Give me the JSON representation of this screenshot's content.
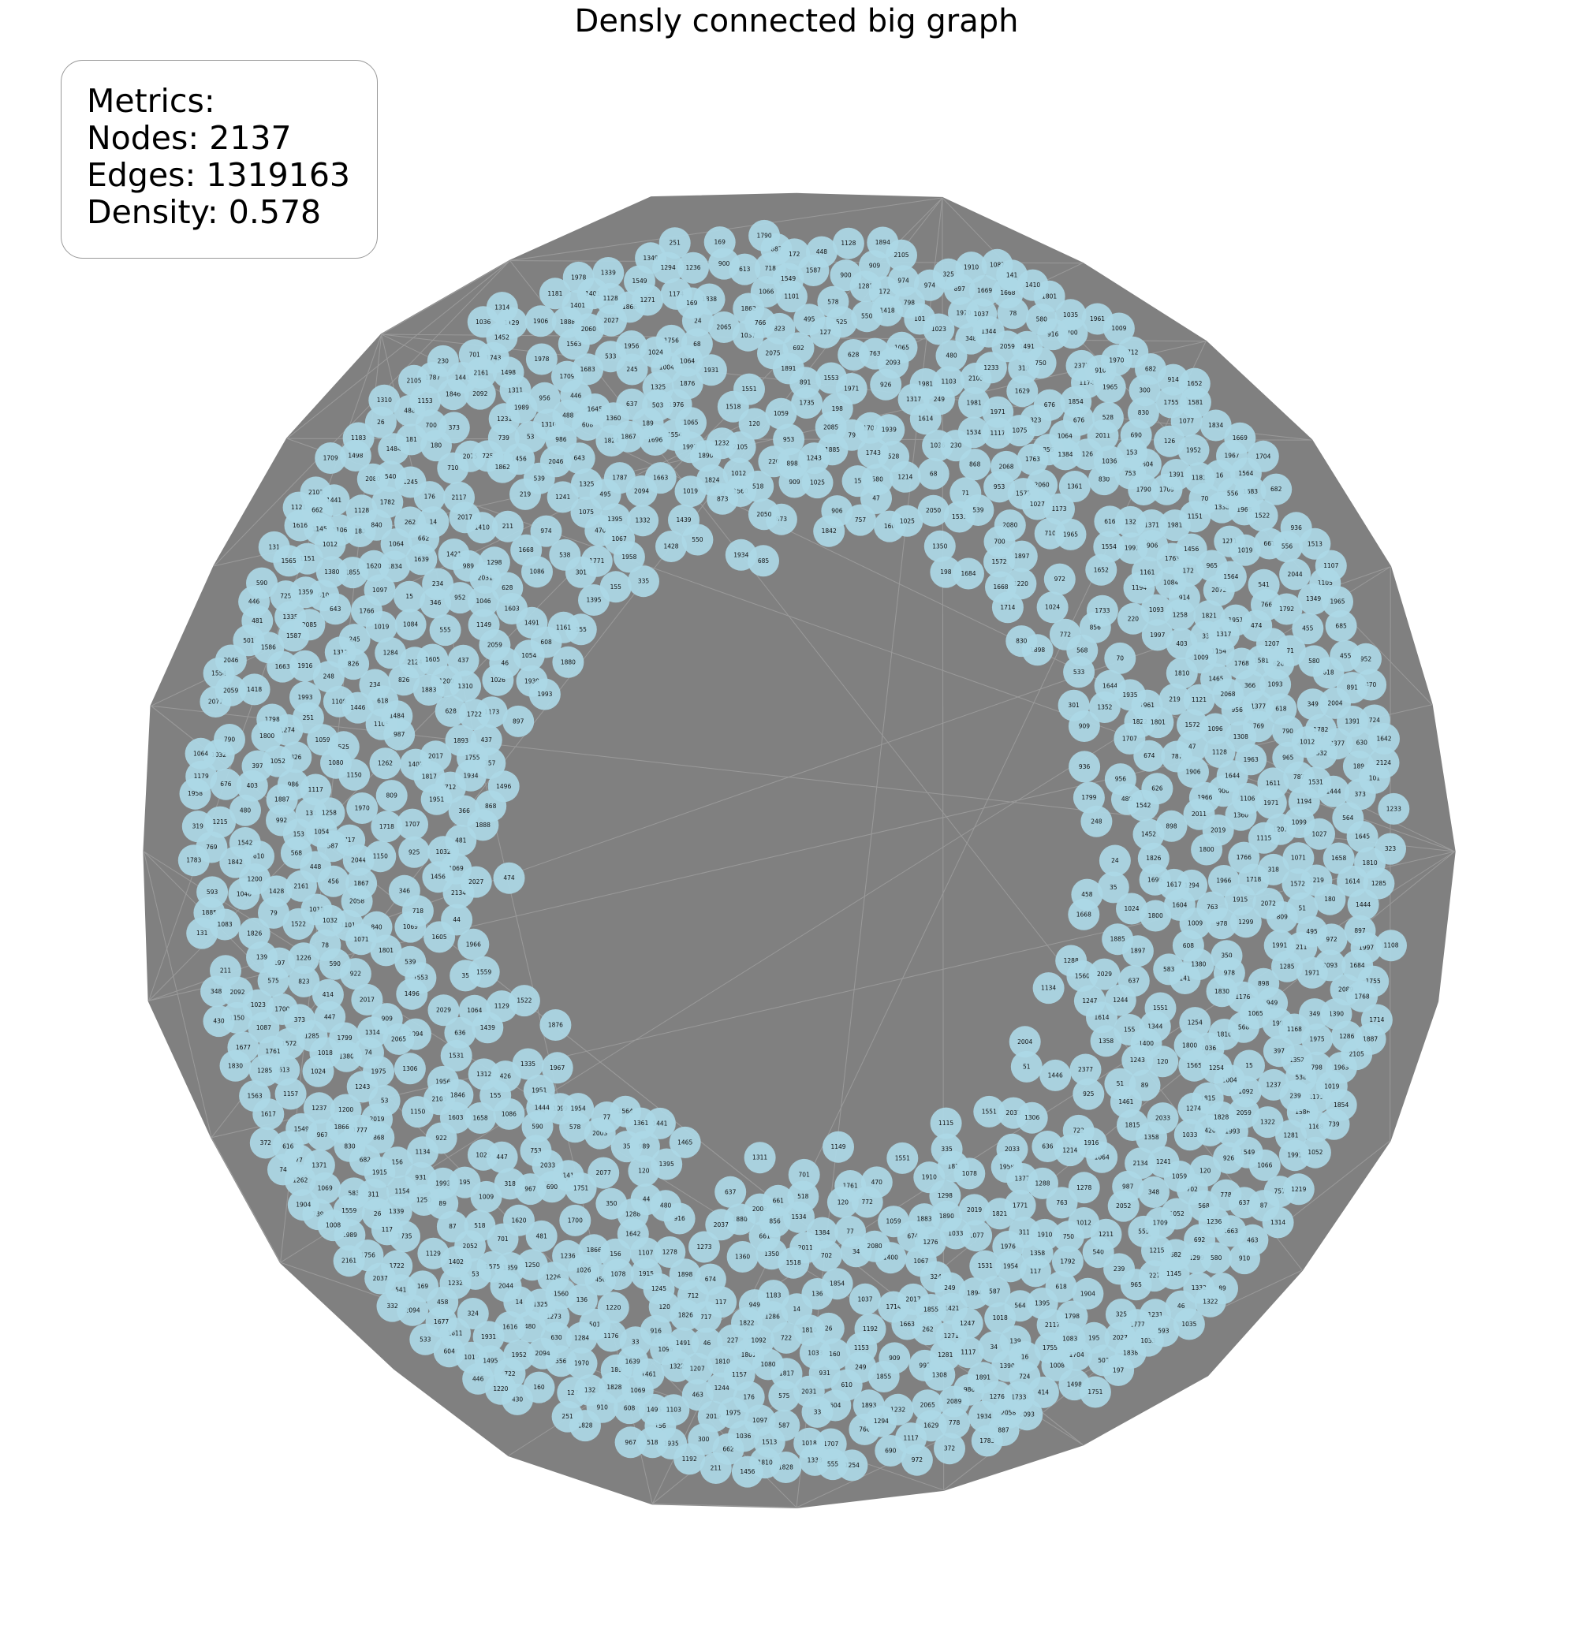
{
  "title": "Densly connected big graph",
  "metrics": {
    "heading": "Metrics:",
    "nodes_label": "Nodes:",
    "nodes": "2137",
    "edges_label": "Edges:",
    "edges": "1319163",
    "density_label": "Density:",
    "density": "0.578"
  },
  "colors": {
    "edge": "#808080",
    "node_fill": "#add8e6",
    "background": "#ffffff"
  },
  "graph": {
    "layout": "ring",
    "node_count": 2137,
    "visible_node_labels": [
      "446",
      "556",
      "701",
      "1810",
      "1052",
      "2377",
      "676",
      "249",
      "1522",
      "46",
      "1564",
      "662",
      "51",
      "722",
      "1281",
      "1325",
      "909",
      "33",
      "757",
      "533",
      "1037",
      "131",
      "587",
      "910",
      "1322",
      "2065",
      "2027",
      "1360",
      "906",
      "555",
      "590",
      "1019",
      "1380",
      "15",
      "1965",
      "14",
      "1991",
      "898",
      "739",
      "480",
      "53",
      "1498",
      "967",
      "251",
      "1065",
      "1129",
      "180",
      "628",
      "661",
      "972",
      "156",
      "169",
      "1032",
      "674",
      "690",
      "160",
      "172",
      "1554",
      "700",
      "198",
      "1958",
      "1810",
      "26",
      "1910",
      "610",
      "1200",
      "2105",
      "373",
      "1288",
      "1855",
      "763",
      "1714",
      "897",
      "1854",
      "868",
      "1826",
      "826",
      "1866",
      "712",
      "141",
      "2011",
      "1441",
      "1314",
      "348",
      "189",
      "1236",
      "1444",
      "495",
      "1981",
      "956",
      "965",
      "2093",
      "1207",
      "35",
      "1951",
      "1310",
      "974",
      "1025",
      "1560",
      "1997",
      "77",
      "539",
      "470",
      "117",
      "89",
      "1358",
      "2080",
      "1885",
      "1975",
      "1294",
      "986",
      "1491",
      "766",
      "1915",
      "1220",
      "1243",
      "1614",
      "856",
      "1036",
      "1254",
      "2044",
      "916",
      "1232",
      "2161",
      "1934",
      "481",
      "448",
      "2052",
      "239",
      "501",
      "1069",
      "790",
      "931",
      "319",
      "1513",
      "787",
      "1106",
      "1096",
      "1880",
      "1231",
      "1115",
      "891",
      "1194",
      "769",
      "262",
      "68",
      "1066",
      "1339",
      "1553",
      "220",
      "234",
      "1559",
      "1023",
      "1026",
      "219",
      "318",
      "1086",
      "87",
      "725",
      "1496",
      "1684",
      "1054",
      "1344",
      "430",
      "616",
      "1586",
      "447",
      "914",
      "952",
      "710",
      "437",
      "456",
      "2060",
      "139",
      "1669",
      "488",
      "1777",
      "778",
      "528",
      "245",
      "70",
      "1117",
      "1935",
      "1452",
      "873",
      "1704",
      "1821",
      "1421",
      "1763",
      "463",
      "1834",
      "1799",
      "455",
      "350",
      "1906",
      "1718",
      "1783",
      "1683",
      "1755",
      "1226",
      "1233",
      "301",
      "1743",
      "1181",
      "1620",
      "1782",
      "1271",
      "2117",
      "1617",
      "1966",
      "809",
      "227",
      "936",
      "909",
      "1244",
      "1993",
      "992",
      "1644",
      "1401",
      "926",
      "1250",
      "403",
      "16",
      "1418",
      "2077",
      "1371",
      "1384",
      "1400",
      "1317",
      "1931",
      "2046",
      "1862",
      "1121",
      "2075",
      "1761",
      "1952",
      "1888",
      "1898",
      "1071",
      "1069",
      "1105",
      "1663",
      "300",
      "702",
      "1658",
      "583",
      "978",
      "2058",
      "987",
      "575",
      "1078",
      "1461",
      "1652",
      "2103",
      "1274",
      "120",
      "1755",
      "1565",
      "1963",
      "1332",
      "1151",
      "1733",
      "197",
      "1215",
      "2105",
      "1176",
      "1575",
      "1335",
      "1978",
      "887",
      "366",
      "1402",
      "840",
      "685",
      "1696",
      "1157",
      "1824",
      "1954",
      "1258",
      "1247",
      "1237",
      "1064",
      "1377",
      "540",
      "44",
      "1611",
      "1495",
      "1308",
      "1735",
      "1891",
      "1173",
      "181",
      "922",
      "1276",
      "1894",
      "1174",
      "1893",
      "1087",
      "1428",
      "1145",
      "1766",
      "1278",
      "2089",
      "1299",
      "1604",
      "1077",
      "1311",
      "1298",
      "1168",
      "1338",
      "1306",
      "1645",
      "1642",
      "1616",
      "718",
      "47",
      "717",
      "1603",
      "1284",
      "2085",
      "1349",
      "1245",
      "1391",
      "1956",
      "311",
      "1390",
      "372",
      "349",
      "1179",
      "1961",
      "1798",
      "823",
      "1446",
      "397",
      "176",
      "1838",
      "1352",
      "1262",
      "1067",
      "1629",
      "1219",
      "1867",
      "1117",
      "1846",
      "1605",
      "2124",
      "1722",
      "1916",
      "1273",
      "750",
      "1286",
      "1241",
      "1149",
      "1154",
      "1153",
      "2072",
      "1211",
      "1004",
      "414",
      "1700",
      "643",
      "925",
      "1707",
      "1756",
      "1815",
      "1551",
      "1395",
      "1465",
      "1456",
      "1285",
      "1709",
      "2019",
      "613",
      "1024",
      "1064",
      "1668",
      "1572",
      "1009",
      "1018",
      "564",
      "503",
      "608",
      "2033",
      "1128",
      "2059",
      "1012",
      "1971",
      "211",
      "1828",
      "618",
      "2017",
      "637",
      "1549",
      "682",
      "155",
      "1033",
      "580",
      "120",
      "518",
      "1531",
      "568",
      "2094",
      "1800",
      "1970",
      "830",
      "1801",
      "1801",
      "480",
      "1484",
      "1966",
      "1581",
      "953",
      "34",
      "323",
      "1707",
      "1897",
      "1904",
      "335",
      "2068",
      "1551",
      "1395",
      "1456",
      "1285",
      "1709",
      "2019",
      "1024",
      "1064",
      "1668",
      "1572",
      "1009",
      "1018",
      "608",
      "2033",
      "1128",
      "2059",
      "1012",
      "1971",
      "211",
      "1828",
      "618",
      "2017",
      "637",
      "1549",
      "682",
      "155",
      "1033",
      "580",
      "120",
      "518",
      "1531",
      "568",
      "2094",
      "1800",
      "1970",
      "830",
      "474",
      "1518",
      "126",
      "79",
      "550",
      "578",
      "153",
      "1019",
      "136",
      "1027",
      "541",
      "1036",
      "458",
      "426",
      "949",
      "78",
      "1563",
      "1639",
      "1035",
      "1059",
      "1312",
      "1410",
      "1663",
      "2037",
      "1876",
      "24",
      "525",
      "248",
      "1183",
      "1008",
      "2029",
      "1989",
      "132",
      "2004",
      "101",
      "127",
      "195",
      "636",
      "1534",
      "692",
      "753",
      "772",
      "1084",
      "1108",
      "1939",
      "1150",
      "1822",
      "1214",
      "1439",
      "1787",
      "1842",
      "1075",
      "1790",
      "1751",
      "2092",
      "1350",
      "1359",
      "989",
      "538",
      "724",
      "346",
      "798",
      "324",
      "71",
      "1771",
      "1830",
      "1083",
      "1890",
      "1361",
      "74",
      "1768",
      "1134",
      "1792",
      "900",
      "230",
      "626",
      "630",
      "1817",
      "1993",
      "1542",
      "332",
      "325",
      "1976",
      "2003",
      "1883",
      "2134",
      "1677",
      "1161",
      "1587",
      "1099",
      "1093",
      "1967",
      "1887",
      "2050",
      "1046",
      "2031",
      "1080",
      "593",
      "604",
      "1103",
      "1107",
      "1192",
      "1092",
      "1097",
      "1101",
      "1059",
      "1150"
    ]
  }
}
